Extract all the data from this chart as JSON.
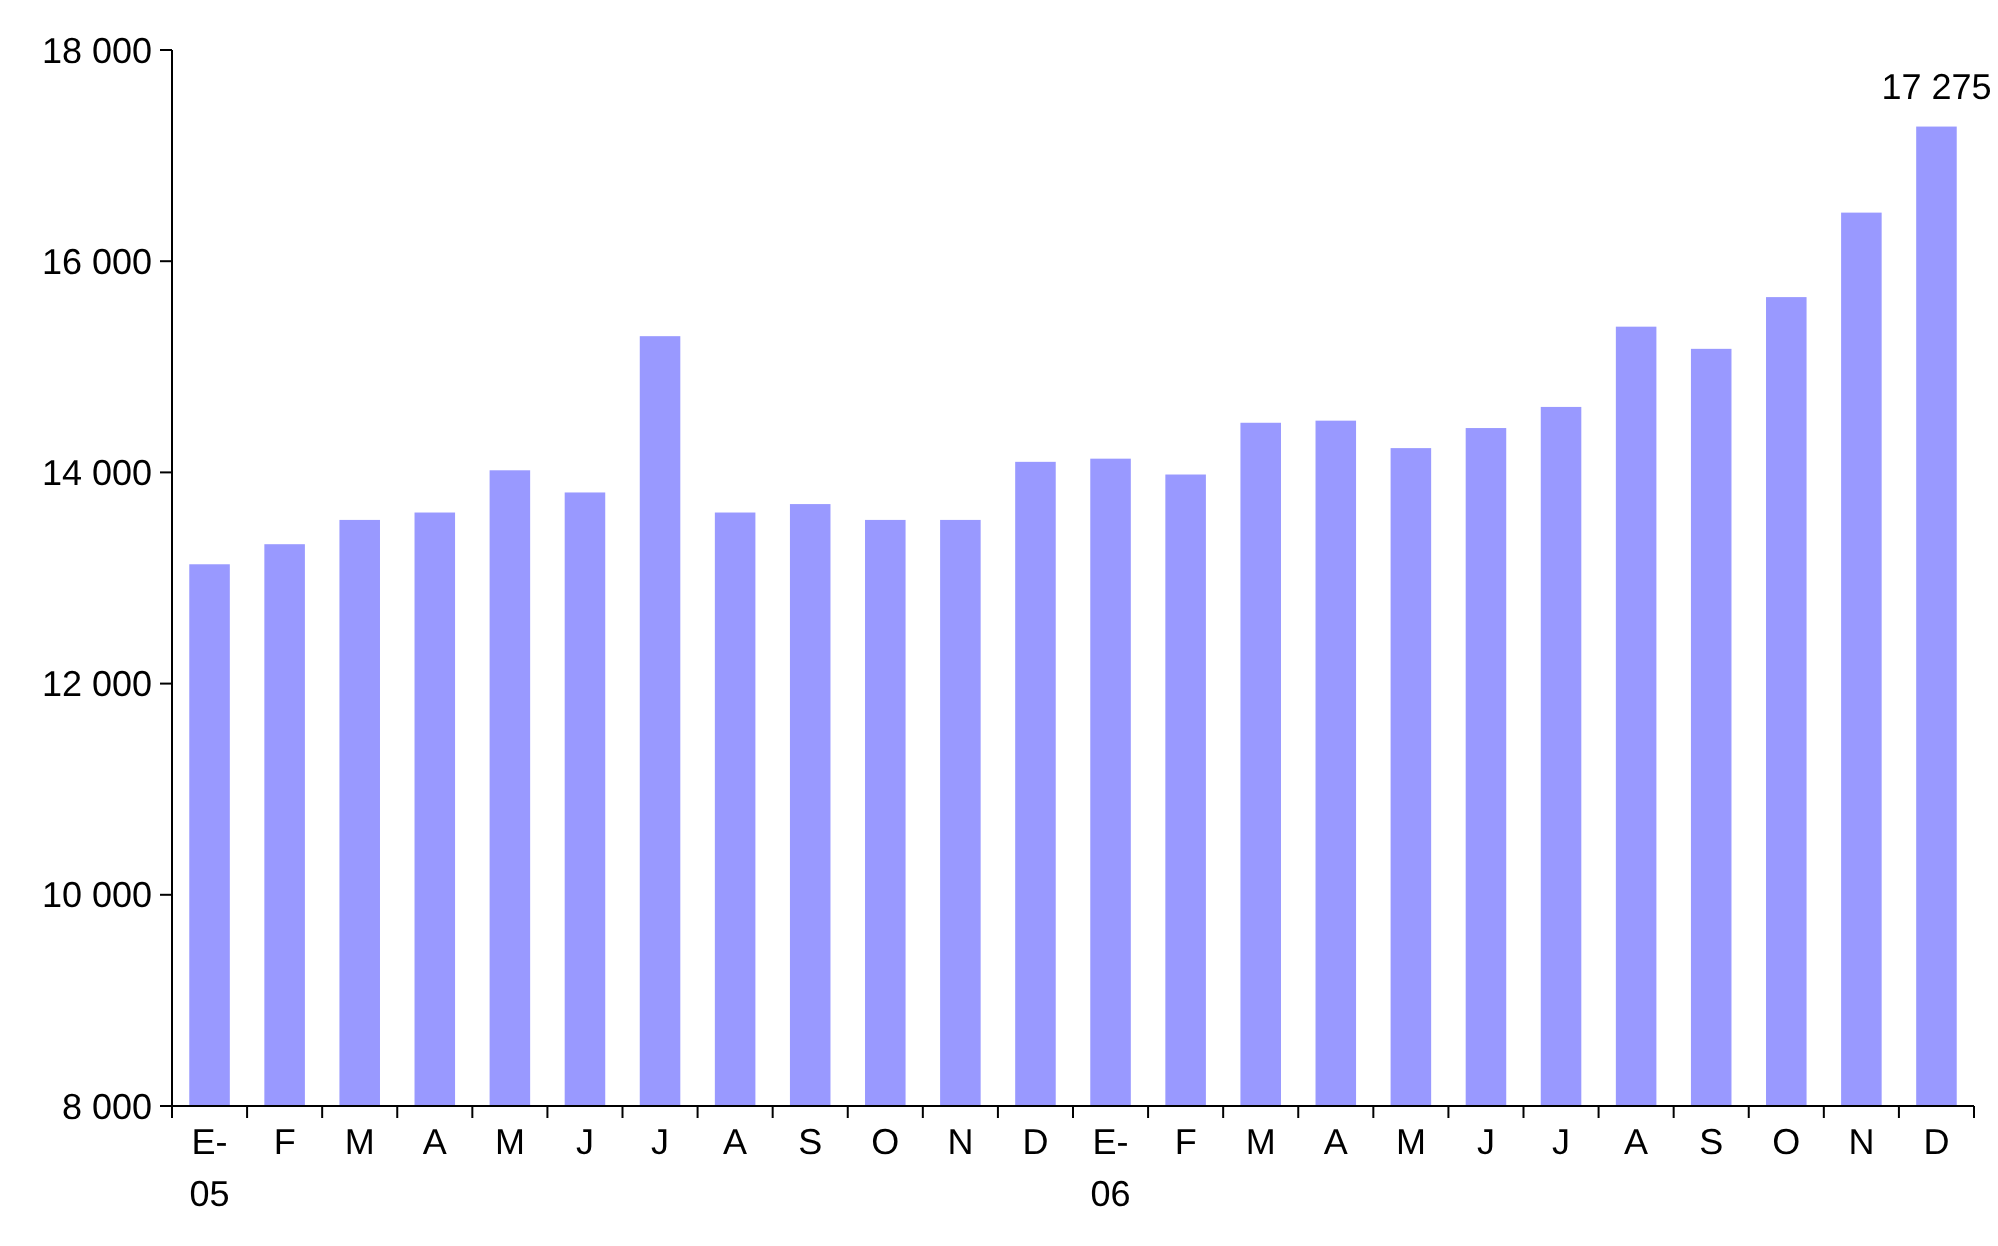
{
  "chart_data": {
    "type": "bar",
    "categories": [
      "E-\n05",
      "F",
      "M",
      "A",
      "M",
      "J",
      "J",
      "A",
      "S",
      "O",
      "N",
      "D",
      "E-\n06",
      "F",
      "M",
      "A",
      "M",
      "J",
      "J",
      "A",
      "S",
      "O",
      "N",
      "D"
    ],
    "values": [
      13130,
      13320,
      13550,
      13620,
      14020,
      13810,
      15290,
      13620,
      13700,
      13550,
      13550,
      14100,
      14130,
      13980,
      14470,
      14490,
      14230,
      14420,
      14620,
      15380,
      15170,
      15660,
      16460,
      17275
    ],
    "value_labels": [
      null,
      null,
      null,
      null,
      null,
      null,
      null,
      null,
      null,
      null,
      null,
      null,
      null,
      null,
      null,
      null,
      null,
      null,
      null,
      null,
      null,
      null,
      null,
      "17 275"
    ],
    "color": "#9999ff",
    "ylim": [
      8000,
      18000
    ],
    "yticks": [
      {
        "value": 8000,
        "label": "8 000"
      },
      {
        "value": 10000,
        "label": "10 000"
      },
      {
        "value": 12000,
        "label": "12 000"
      },
      {
        "value": 14000,
        "label": "14 000"
      },
      {
        "value": 16000,
        "label": "16 000"
      },
      {
        "value": 18000,
        "label": "18 000"
      }
    ],
    "grid": false
  }
}
